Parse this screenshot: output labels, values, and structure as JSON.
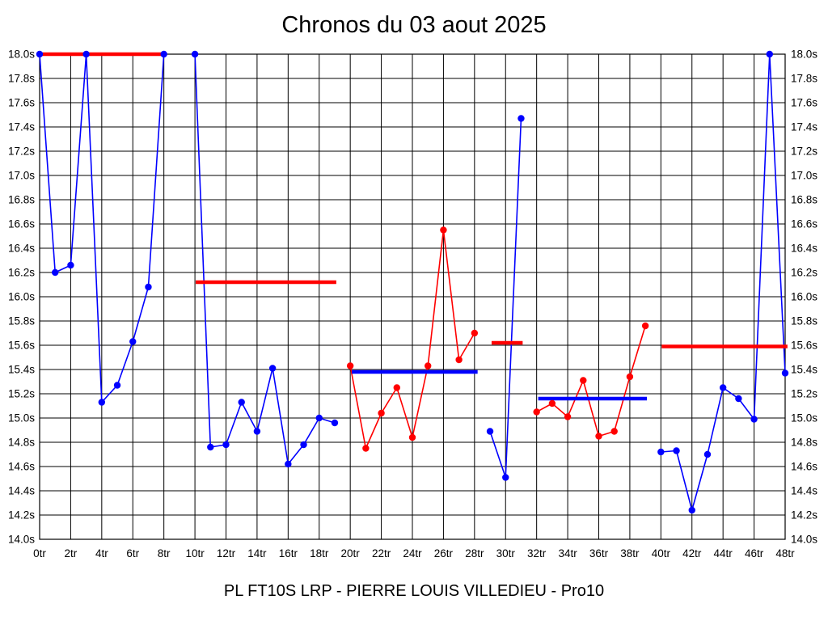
{
  "chart_data": {
    "type": "line",
    "title": "Chronos du 03 aout 2025",
    "footer": "PL FT10S LRP - PIERRE LOUIS VILLEDIEU - Pro10",
    "xlabel": "",
    "ylabel": "",
    "x_unit": "tr",
    "y_unit": "s",
    "xlim": [
      0,
      48
    ],
    "ylim": [
      14.0,
      18.0
    ],
    "x_tick_step": 2,
    "y_tick_step": 0.2,
    "grid": true,
    "legend": "none",
    "colors": {
      "blue_series": "#0000ff",
      "red_series": "#ff0000",
      "grid": "#000000",
      "background": "#ffffff",
      "text": "#000000"
    },
    "y_tick_labels": [
      "18.0s",
      "17.8s",
      "17.6s",
      "17.4s",
      "17.2s",
      "17.0s",
      "16.8s",
      "16.6s",
      "16.4s",
      "16.2s",
      "16.0s",
      "15.8s",
      "15.6s",
      "15.4s",
      "15.2s",
      "15.0s",
      "14.8s",
      "14.6s",
      "14.4s",
      "14.2s",
      "14.0s"
    ],
    "y_tick_values": [
      18.0,
      17.8,
      17.6,
      17.4,
      17.2,
      17.0,
      16.8,
      16.6,
      16.4,
      16.2,
      16.0,
      15.8,
      15.6,
      15.4,
      15.2,
      15.0,
      14.8,
      14.6,
      14.4,
      14.2,
      14.0
    ],
    "x_tick_labels": [
      "0tr",
      "2tr",
      "4tr",
      "6tr",
      "8tr",
      "10tr",
      "12tr",
      "14tr",
      "16tr",
      "18tr",
      "20tr",
      "22tr",
      "24tr",
      "26tr",
      "28tr",
      "30tr",
      "32tr",
      "34tr",
      "36tr",
      "38tr",
      "40tr",
      "42tr",
      "44tr",
      "46tr",
      "48tr"
    ],
    "x_tick_values": [
      0,
      2,
      4,
      6,
      8,
      10,
      12,
      14,
      16,
      18,
      20,
      22,
      24,
      26,
      28,
      30,
      32,
      34,
      36,
      38,
      40,
      42,
      44,
      46,
      48
    ],
    "series": [
      {
        "name": "laps 0-8 (blue)",
        "color": "#0000ff",
        "laps": [
          0,
          1,
          2,
          3,
          4,
          5,
          6,
          7,
          8
        ],
        "values": [
          18.0,
          16.2,
          16.26,
          18.0,
          15.13,
          15.27,
          15.63,
          16.08,
          18.0
        ]
      },
      {
        "name": "laps 10-19 (blue)",
        "color": "#0000ff",
        "laps": [
          10,
          11,
          12,
          13,
          14,
          15,
          16,
          17,
          18,
          19
        ],
        "values": [
          18.0,
          14.76,
          14.78,
          15.13,
          14.89,
          15.41,
          14.62,
          14.78,
          15.0,
          14.96
        ]
      },
      {
        "name": "laps 20-28 (red)",
        "color": "#ff0000",
        "laps": [
          20,
          21,
          22,
          23,
          24,
          25,
          26,
          27,
          28
        ],
        "values": [
          15.43,
          14.75,
          15.04,
          15.25,
          14.84,
          15.43,
          16.55,
          15.48,
          15.7
        ]
      },
      {
        "name": "laps 29-31 (blue)",
        "color": "#0000ff",
        "laps": [
          29,
          30,
          31
        ],
        "values": [
          14.89,
          14.51,
          17.47
        ]
      },
      {
        "name": "laps 32-39 (red)",
        "color": "#ff0000",
        "laps": [
          32,
          33,
          34,
          35,
          36,
          37,
          38,
          39
        ],
        "values": [
          15.05,
          15.12,
          15.01,
          15.31,
          14.85,
          14.89,
          15.34,
          15.76
        ]
      },
      {
        "name": "laps 40-48 (blue)",
        "color": "#0000ff",
        "laps": [
          40,
          41,
          42,
          43,
          44,
          45,
          46,
          47,
          48
        ],
        "values": [
          14.72,
          14.73,
          14.24,
          14.7,
          15.25,
          15.16,
          14.99,
          18.0,
          15.37
        ]
      }
    ],
    "average_lines": [
      {
        "color": "#ff0000",
        "x_start": 0,
        "x_end": 8,
        "value": 18.0
      },
      {
        "color": "#ff0000",
        "x_start": 10.05,
        "x_end": 19.1,
        "value": 16.12
      },
      {
        "color": "#0000ff",
        "x_start": 20.1,
        "x_end": 28.2,
        "value": 15.38
      },
      {
        "color": "#ff0000",
        "x_start": 29.1,
        "x_end": 31.1,
        "value": 15.62
      },
      {
        "color": "#0000ff",
        "x_start": 32.1,
        "x_end": 39.1,
        "value": 15.16
      },
      {
        "color": "#ff0000",
        "x_start": 40.05,
        "x_end": 48.15,
        "value": 15.59
      }
    ]
  }
}
